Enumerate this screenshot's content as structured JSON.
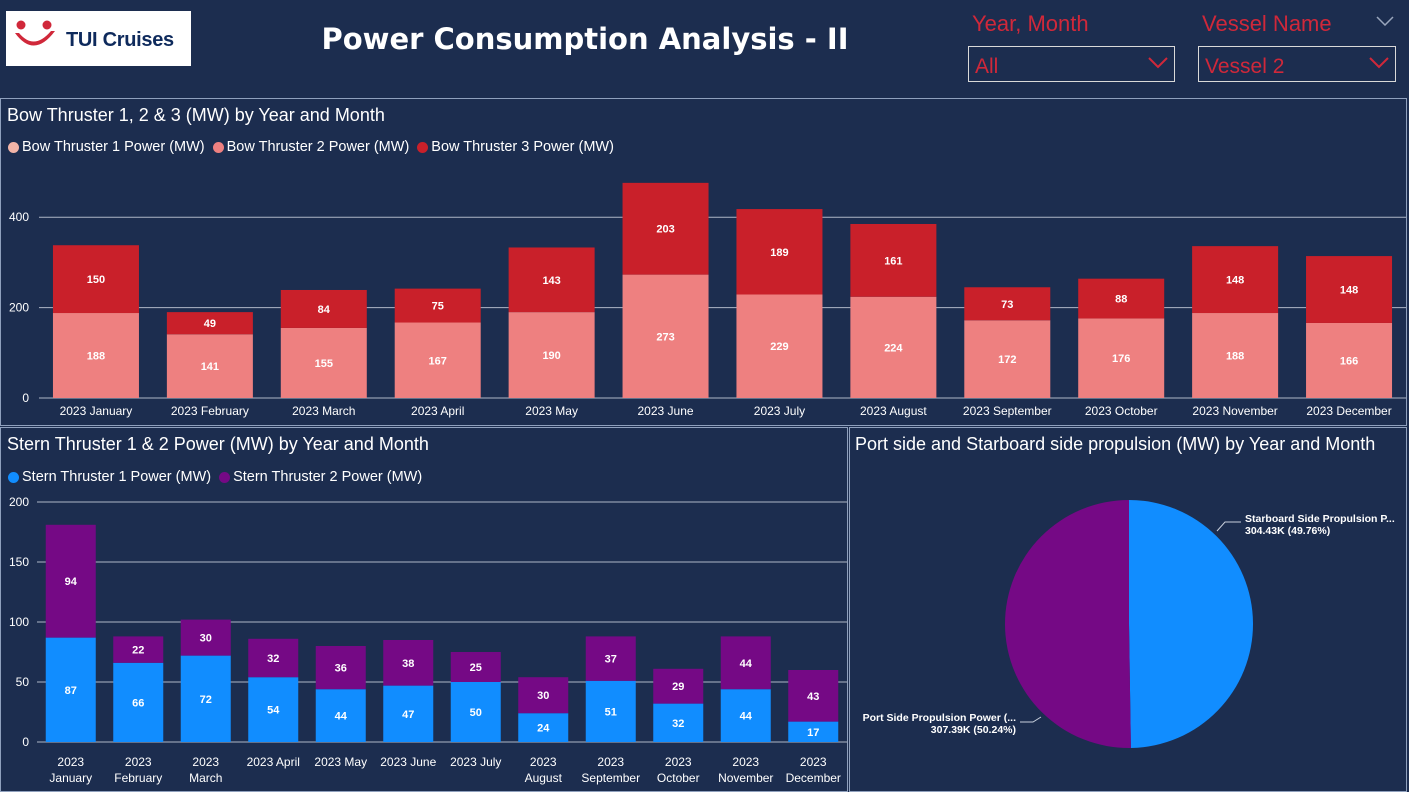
{
  "header": {
    "title": "Power Consumption Analysis - II",
    "logo_text": "TUI Cruises",
    "logo_color": "#d0283a"
  },
  "filters": {
    "year_month_label": "Year, Month",
    "year_month_value": "All",
    "vessel_label": "Vessel Name",
    "vessel_value": "Vessel 2",
    "accent_color": "#d0283a"
  },
  "chart_data": [
    {
      "type": "bar",
      "stacked": true,
      "title": "Bow Thruster 1, 2 & 3 (MW) by Year and Month",
      "categories": [
        "2023 January",
        "2023 February",
        "2023 March",
        "2023 April",
        "2023 May",
        "2023 June",
        "2023 July",
        "2023 August",
        "2023 September",
        "2023 October",
        "2023 November",
        "2023 December"
      ],
      "series": [
        {
          "name": "Bow Thruster 1 Power (MW)",
          "color": "#f2b4a8",
          "values": [
            0,
            0,
            0,
            0,
            0,
            0,
            0,
            0,
            0,
            0,
            0,
            0
          ]
        },
        {
          "name": "Bow Thruster 2 Power (MW)",
          "color": "#ee8080",
          "values": [
            188,
            141,
            155,
            167,
            190,
            273,
            229,
            224,
            172,
            176,
            188,
            166
          ]
        },
        {
          "name": "Bow Thruster 3 Power (MW)",
          "color": "#c9202a",
          "values": [
            150,
            49,
            84,
            75,
            143,
            203,
            189,
            161,
            73,
            88,
            148,
            148
          ]
        }
      ],
      "yticks": [
        0,
        200,
        400
      ],
      "ylim": [
        0,
        500
      ],
      "grid": true,
      "legend": "top-left"
    },
    {
      "type": "bar",
      "stacked": true,
      "title": "Stern Thruster 1 & 2 Power (MW) by Year and Month",
      "categories": [
        [
          "2023",
          "January"
        ],
        [
          "2023",
          "February"
        ],
        [
          "2023",
          "March"
        ],
        [
          "2023 April"
        ],
        [
          "2023 May"
        ],
        [
          "2023 June"
        ],
        [
          "2023 July"
        ],
        [
          "2023",
          "August"
        ],
        [
          "2023",
          "September"
        ],
        [
          "2023",
          "October"
        ],
        [
          "2023",
          "November"
        ],
        [
          "2023",
          "December"
        ]
      ],
      "series": [
        {
          "name": "Stern Thruster 1 Power (MW)",
          "color": "#118dff",
          "values": [
            87,
            66,
            72,
            54,
            44,
            47,
            50,
            24,
            51,
            32,
            44,
            17
          ]
        },
        {
          "name": "Stern Thruster 2 Power (MW)",
          "color": "#750985",
          "values": [
            94,
            22,
            30,
            32,
            36,
            38,
            25,
            30,
            37,
            29,
            44,
            43
          ]
        }
      ],
      "yticks": [
        0,
        50,
        100,
        150,
        200
      ],
      "ylim": [
        0,
        200
      ],
      "grid": true,
      "legend": "top-left"
    },
    {
      "type": "pie",
      "title": "Port side and Starboard side propulsion (MW) by Year and Month",
      "slices": [
        {
          "label": "Starboard Side Propulsion P...",
          "value_label": "304.43K (49.76%)",
          "value": 304.43,
          "percent": 49.76,
          "color": "#118dff"
        },
        {
          "label": "Port Side Propulsion Power (...",
          "value_label": "307.39K (50.24%)",
          "value": 307.39,
          "percent": 50.24,
          "color": "#750985"
        }
      ]
    }
  ]
}
